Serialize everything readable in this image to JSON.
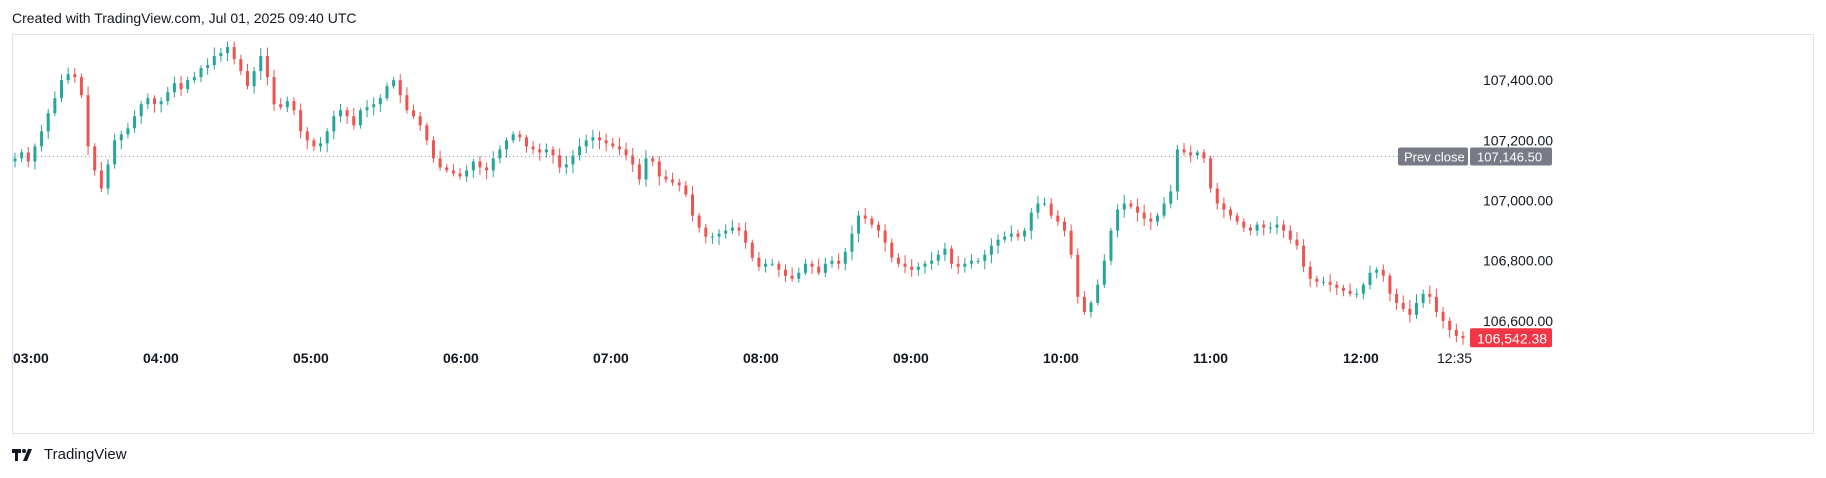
{
  "header": {
    "created_text": "Created with TradingView.com, Jul 01, 2025 09:40 UTC"
  },
  "footer": {
    "brand": "TradingView"
  },
  "colors": {
    "up": "#26a69a",
    "down": "#ef5350",
    "prev_close_bg": "#787b86",
    "last_bg": "#f23645",
    "grid_text": "#131722"
  },
  "chart_data": {
    "type": "candlestick",
    "x_labels": [
      "03:00",
      "04:00",
      "05:00",
      "06:00",
      "07:00",
      "08:00",
      "09:00",
      "10:00",
      "11:00",
      "12:00",
      "12:35"
    ],
    "y_ticks": [
      "107,400.00",
      "107,200.00",
      "107,000.00",
      "106,800.00",
      "106,600.00"
    ],
    "y_tick_values": [
      107400,
      107200,
      107000,
      106800,
      106600
    ],
    "ylim": [
      106520,
      107550
    ],
    "prev_close": {
      "label": "Prev close",
      "value": 107146.5,
      "value_text": "107,146.50"
    },
    "last_price": {
      "value": 106542.38,
      "value_text": "106,542.38"
    },
    "close_series": [
      107140,
      107160,
      107130,
      107180,
      107230,
      107290,
      107340,
      107400,
      107420,
      107410,
      107350,
      107180,
      107100,
      107040,
      107120,
      107200,
      107220,
      107240,
      107280,
      107320,
      107340,
      107320,
      107330,
      107360,
      107390,
      107370,
      107400,
      107410,
      107440,
      107450,
      107480,
      107490,
      107510,
      107470,
      107430,
      107380,
      107430,
      107480,
      107410,
      107320,
      107310,
      107330,
      107300,
      107230,
      107200,
      107180,
      107190,
      107230,
      107280,
      107300,
      107280,
      107250,
      107300,
      107310,
      107320,
      107340,
      107380,
      107400,
      107350,
      107300,
      107280,
      107250,
      107200,
      107140,
      107110,
      107100,
      107090,
      107080,
      107100,
      107130,
      107110,
      107100,
      107140,
      107170,
      107200,
      107220,
      107210,
      107180,
      107170,
      107160,
      107170,
      107150,
      107110,
      107120,
      107150,
      107180,
      107200,
      107210,
      107200,
      107190,
      107180,
      107170,
      107150,
      107120,
      107070,
      107140,
      107130,
      107080,
      107070,
      107060,
      107050,
      107020,
      106950,
      106910,
      106880,
      106880,
      106890,
      106900,
      106910,
      106900,
      106860,
      106810,
      106780,
      106790,
      106790,
      106770,
      106750,
      106740,
      106760,
      106790,
      106780,
      106760,
      106790,
      106800,
      106790,
      106830,
      106890,
      106950,
      106940,
      106920,
      106900,
      106860,
      106810,
      106790,
      106780,
      106770,
      106780,
      106790,
      106800,
      106820,
      106840,
      106790,
      106780,
      106790,
      106800,
      106800,
      106820,
      106850,
      106870,
      106880,
      106890,
      106880,
      106900,
      106960,
      106990,
      106990,
      106950,
      106930,
      106900,
      106820,
      106680,
      106630,
      106660,
      106720,
      106800,
      106900,
      106970,
      106990,
      106980,
      106960,
      106940,
      106930,
      106950,
      106990,
      107030,
      107170,
      107160,
      107150,
      107160,
      107140,
      107040,
      106990,
      106970,
      106950,
      106930,
      106910,
      106900,
      106920,
      106910,
      106910,
      106920,
      106900,
      106870,
      106850,
      106780,
      106740,
      106730,
      106730,
      106720,
      106710,
      106700,
      106690,
      106690,
      106720,
      106760,
      106770,
      106750,
      106690,
      106660,
      106640,
      106620,
      106660,
      106690,
      106680,
      106630,
      106600,
      106570,
      106550,
      106542.38
    ]
  }
}
